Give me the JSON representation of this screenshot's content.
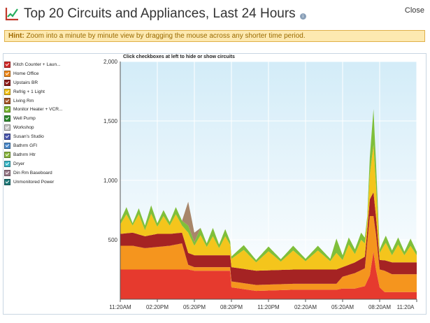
{
  "header": {
    "title": "Top 20 Circuits and Appliances, Last 24 Hours",
    "info_icon": "info-icon",
    "close_label": "Close"
  },
  "hint": {
    "label": "Hint:",
    "text": "Zoom into a minute by minute view by dragging the mouse across any shorter time period."
  },
  "legend": {
    "items": [
      {
        "label": "Kitch Counter + Laun...",
        "color": "#d42a2a"
      },
      {
        "label": "Home Office",
        "color": "#f08a1c"
      },
      {
        "label": "Upstairs BR",
        "color": "#8f1d1d"
      },
      {
        "label": "Refrig + 1 Light",
        "color": "#f2c21a"
      },
      {
        "label": "Living Rm",
        "color": "#a8582a"
      },
      {
        "label": "Monitor Heater + VCR...",
        "color": "#7ab830"
      },
      {
        "label": "Well Pump",
        "color": "#2d8a2d"
      },
      {
        "label": "Workshop",
        "color": "#c8c8c8"
      },
      {
        "label": "Susan's Studio",
        "color": "#4a58b0"
      },
      {
        "label": "Bathrm GFI",
        "color": "#4a8acc"
      },
      {
        "label": "Bathrm Htr",
        "color": "#8ab840"
      },
      {
        "label": "Dryer",
        "color": "#3ab8c8"
      },
      {
        "label": "Din Rm Baseboard",
        "color": "#9a7a8a"
      },
      {
        "label": "Unmonitored Power",
        "color": "#1e7a7a"
      }
    ]
  },
  "chart_note": "Click checkboxes at left to hide or show circuits",
  "chart_data": {
    "type": "area",
    "title": "",
    "xlabel": "",
    "ylabel": "",
    "ylim": [
      0,
      2000
    ],
    "yticks": [
      {
        "value": 500,
        "label": "500"
      },
      {
        "value": 1000,
        "label": "1,000"
      },
      {
        "value": 1500,
        "label": "1,500"
      },
      {
        "value": 2000,
        "label": "2,000"
      }
    ],
    "x_hours": [
      0,
      3,
      6,
      9,
      12,
      15,
      18,
      21,
      24
    ],
    "x_labels": [
      "11:20AM",
      "02:20PM",
      "05:20PM",
      "08:20PM",
      "11:20PM",
      "02:20AM",
      "05:20AM",
      "08:20AM",
      "11:20A"
    ],
    "grid": true,
    "stack": [
      {
        "name": "Kitch Counter + Laun...",
        "color": "#e63a2e",
        "x": [
          0,
          1,
          2,
          3,
          4,
          5,
          5.5,
          6,
          6.5,
          7,
          7.5,
          8,
          8.6,
          8.9,
          9,
          11,
          14,
          16,
          17.5,
          18,
          19,
          19.8,
          20.2,
          20.5,
          20.7,
          21,
          21.4,
          22,
          23,
          24
        ],
        "y": [
          250,
          250,
          250,
          250,
          250,
          250,
          250,
          240,
          240,
          240,
          240,
          240,
          240,
          240,
          100,
          70,
          80,
          80,
          80,
          90,
          90,
          110,
          200,
          400,
          250,
          100,
          60,
          60,
          60,
          60
        ]
      },
      {
        "name": "Home Office",
        "color": "#f5951e",
        "x": [
          0,
          1,
          2,
          3,
          4,
          5,
          5.5,
          6,
          7,
          8,
          8.9,
          9,
          12,
          15,
          17.5,
          18,
          19,
          19.8,
          20.2,
          20.5,
          20.7,
          21,
          21.4,
          22,
          23,
          24
        ],
        "y": [
          200,
          200,
          180,
          190,
          200,
          220,
          40,
          30,
          30,
          30,
          30,
          50,
          50,
          50,
          50,
          100,
          130,
          150,
          500,
          300,
          300,
          150,
          180,
          150,
          150,
          150
        ]
      },
      {
        "name": "Upstairs BR",
        "color": "#a52323",
        "x": [
          0,
          1,
          2,
          3,
          4,
          5,
          5.5,
          6,
          7,
          8,
          8.9,
          9,
          12,
          15,
          17.5,
          18,
          19,
          20,
          20.5,
          21,
          22,
          23,
          24
        ],
        "y": [
          100,
          110,
          100,
          110,
          100,
          90,
          100,
          100,
          100,
          100,
          100,
          120,
          120,
          120,
          120,
          80,
          90,
          100,
          200,
          80,
          100,
          100,
          100
        ]
      },
      {
        "name": "Refrig + 1 Light",
        "color": "#f4c51c",
        "x": [
          0,
          0.5,
          1,
          1.5,
          2,
          2.5,
          3,
          3.5,
          4,
          4.5,
          5,
          5.5,
          6,
          6.5,
          7,
          7.5,
          8,
          8.5,
          9,
          10,
          11,
          12,
          13,
          14,
          15,
          16,
          17,
          17.5,
          18,
          18.5,
          19,
          19.5,
          20,
          20.5,
          21,
          21.5,
          22,
          22.5,
          23,
          23.5,
          24
        ],
        "y": [
          80,
          160,
          60,
          170,
          50,
          180,
          60,
          150,
          70,
          160,
          60,
          170,
          80,
          170,
          70,
          160,
          60,
          160,
          70,
          160,
          70,
          160,
          70,
          160,
          70,
          160,
          70,
          140,
          60,
          170,
          70,
          160,
          80,
          400,
          60,
          150,
          60,
          150,
          60,
          140,
          60
        ]
      },
      {
        "name": "Monitor Heater + VCR...",
        "color": "#7fbf3a",
        "x": [
          0,
          0.5,
          1,
          1.5,
          2,
          2.5,
          3,
          3.5,
          4,
          4.5,
          5,
          5.5,
          6,
          6.5,
          7,
          7.5,
          8,
          8.5,
          9,
          10,
          11,
          12,
          13,
          14,
          15,
          16,
          17,
          17.5,
          18,
          18.5,
          19,
          19.5,
          20,
          20.5,
          21,
          21.5,
          22,
          22.5,
          23,
          23.5,
          24
        ],
        "y": [
          30,
          60,
          20,
          50,
          40,
          70,
          30,
          50,
          30,
          60,
          40,
          60,
          30,
          60,
          30,
          70,
          30,
          60,
          20,
          40,
          20,
          40,
          20,
          40,
          20,
          40,
          20,
          120,
          40,
          60,
          40,
          60,
          40,
          300,
          30,
          60,
          40,
          60,
          30,
          60,
          30
        ]
      },
      {
        "name": "Din Rm Baseboard",
        "color": "#a8866a",
        "x": [
          0,
          5,
          5.5,
          6,
          6.5,
          7,
          9,
          24
        ],
        "y": [
          0,
          0,
          200,
          80,
          0,
          0,
          0,
          0
        ]
      }
    ]
  }
}
